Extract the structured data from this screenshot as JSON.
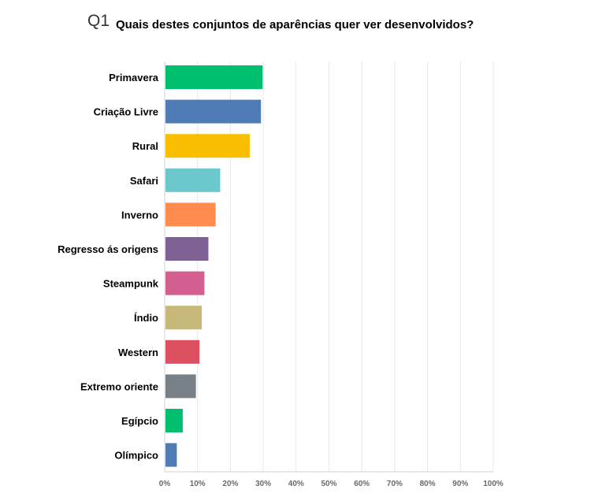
{
  "question": {
    "number": "Q1",
    "text": "Quais destes conjuntos de aparências quer ver desenvolvidos?"
  },
  "chart_data": {
    "type": "bar",
    "orientation": "horizontal",
    "categories": [
      "Primavera",
      "Criação Livre",
      "Rural",
      "Safari",
      "Inverno",
      "Regresso ás origens",
      "Steampunk",
      "Índio",
      "Western",
      "Extremo oriente",
      "Egípcio",
      "Olímpico"
    ],
    "values": [
      29.8,
      29.3,
      25.9,
      16.9,
      15.5,
      13.3,
      12.1,
      11.3,
      10.6,
      9.5,
      5.5,
      3.7
    ],
    "colors": [
      "#00bf6f",
      "#507cb6",
      "#f9be00",
      "#6bc8cd",
      "#ff8b4f",
      "#7f6095",
      "#d25f90",
      "#c7b879",
      "#dc5061",
      "#768086",
      "#00bf6f",
      "#507cb6"
    ],
    "xticks": [
      "0%",
      "10%",
      "20%",
      "30%",
      "40%",
      "50%",
      "60%",
      "70%",
      "80%",
      "90%",
      "100%"
    ],
    "xlim": [
      0,
      100
    ],
    "title": "Quais destes conjuntos de aparências quer ver desenvolvidos?",
    "xlabel": "",
    "ylabel": "",
    "grid": true
  }
}
